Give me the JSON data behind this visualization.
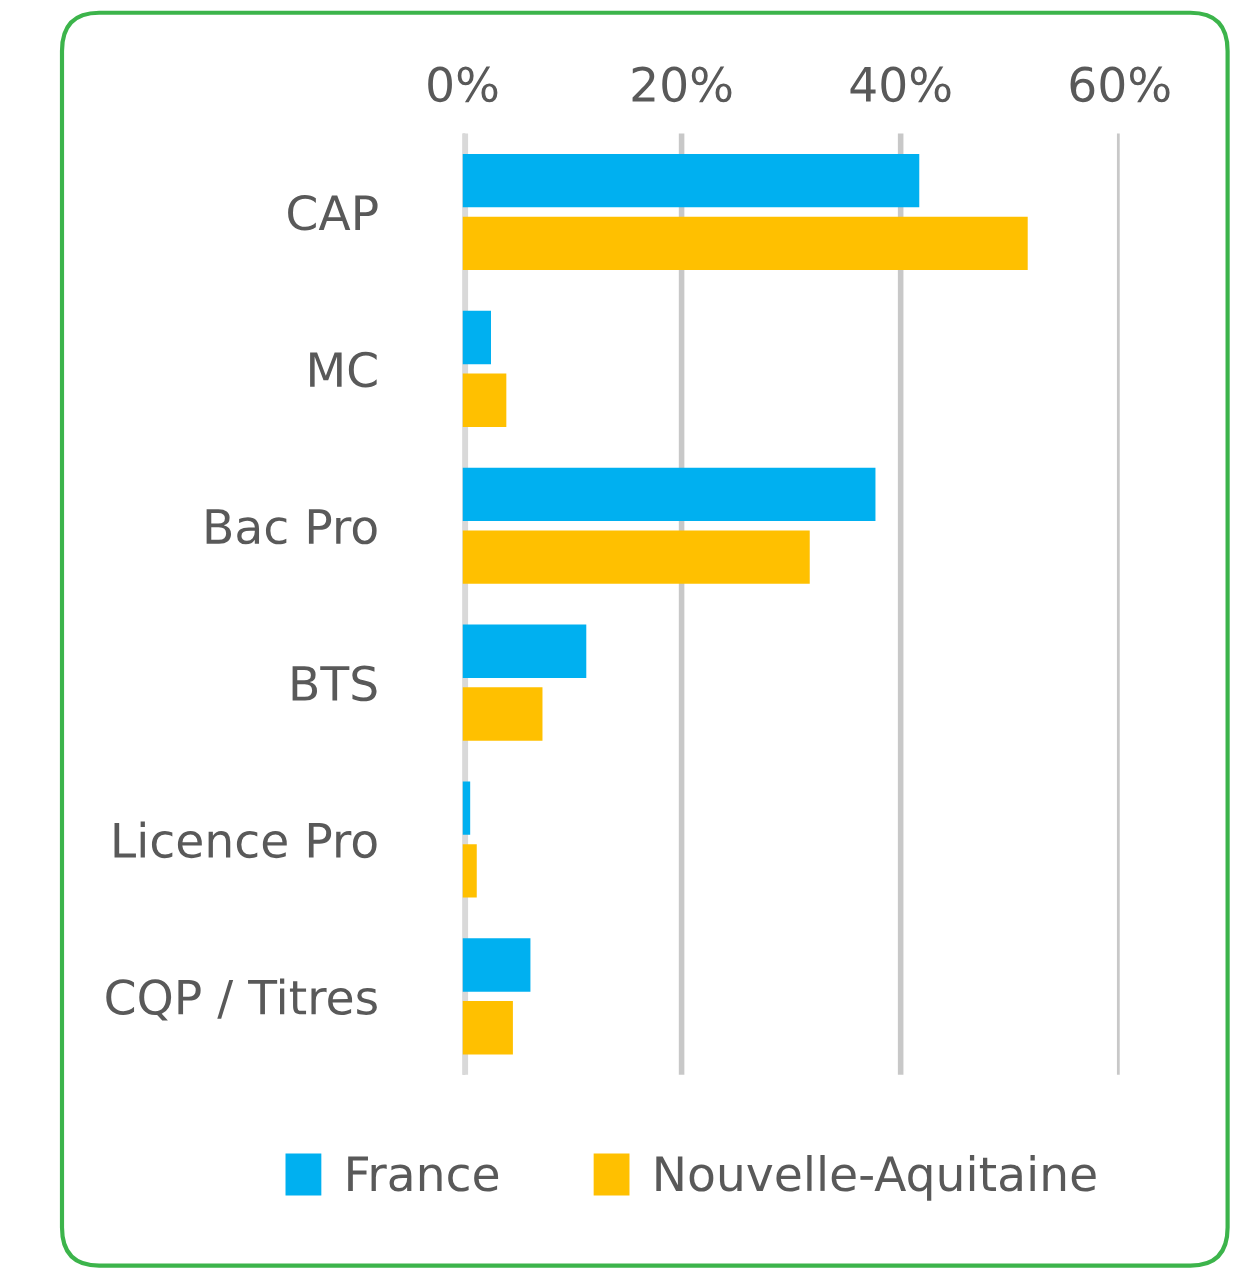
{
  "chart_data": {
    "type": "bar",
    "orientation": "horizontal",
    "categories": [
      "CAP",
      "MC",
      "Bac Pro",
      "BTS",
      "Licence Pro",
      "CQP / Titres"
    ],
    "series": [
      {
        "name": "France",
        "color": "#00b0f0",
        "values": [
          41.7,
          2.6,
          37.7,
          11.3,
          0.7,
          6.2
        ]
      },
      {
        "name": "Nouvelle-Aquitaine",
        "color": "#ffc000",
        "values": [
          51.6,
          4.0,
          31.7,
          7.3,
          1.3,
          4.6
        ]
      }
    ],
    "xlim": [
      0,
      60
    ],
    "xticks": [
      {
        "value": 0,
        "label": "0%"
      },
      {
        "value": 20,
        "label": "20%"
      },
      {
        "value": 40,
        "label": "40%"
      },
      {
        "value": 60,
        "label": "60%"
      }
    ],
    "grid": "x",
    "legend": "bottom"
  }
}
